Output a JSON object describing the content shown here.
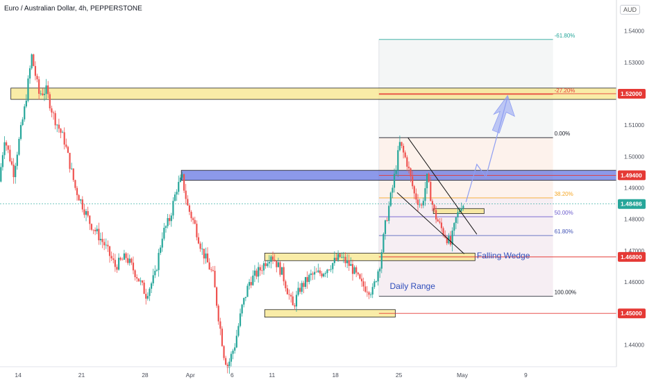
{
  "header": {
    "title": "Euro / Australian Dollar, 4h, PEPPERSTONE",
    "currency_button": "AUD"
  },
  "colors": {
    "up": "#26a69a",
    "down": "#ef5350",
    "zone_yellow": "#f7e58a",
    "zone_blue": "#5b6ee1",
    "fib_red": "#e53935",
    "fib_orange": "#f5a623",
    "fib_purple": "#6a5acd",
    "fib_blue": "#3f51b5",
    "projection": "#8e9ef2"
  },
  "chart_data": {
    "type": "candlestick",
    "symbol": "Euro / Australian Dollar",
    "timeframe": "4h",
    "broker": "PEPPERSTONE",
    "ylim": [
      1.433,
      1.545
    ],
    "x_range": [
      0,
      340
    ],
    "y_ticks": [
      1.44,
      1.45,
      1.46,
      1.47,
      1.48,
      1.49,
      1.5,
      1.51,
      1.52,
      1.53,
      1.54
    ],
    "y_tick_labels": [
      "1.44000",
      "1.45000",
      "1.46000",
      "1.47000",
      "1.48000",
      "1.49000",
      "1.50000",
      "1.51000",
      "1.52000",
      "1.53000",
      "1.54000"
    ],
    "x_ticks": [
      {
        "label": "14",
        "x": 10
      },
      {
        "label": "21",
        "x": 45
      },
      {
        "label": "28",
        "x": 80
      },
      {
        "label": "Apr",
        "x": 105
      },
      {
        "label": "6",
        "x": 128
      },
      {
        "label": "11",
        "x": 150
      },
      {
        "label": "18",
        "x": 185
      },
      {
        "label": "25",
        "x": 220
      },
      {
        "label": "May",
        "x": 255
      },
      {
        "label": "9",
        "x": 290
      }
    ],
    "path_points": [
      [
        0,
        1.492
      ],
      [
        3,
        1.506
      ],
      [
        8,
        1.495
      ],
      [
        14,
        1.515
      ],
      [
        18,
        1.532
      ],
      [
        22,
        1.52
      ],
      [
        26,
        1.521
      ],
      [
        30,
        1.513
      ],
      [
        36,
        1.505
      ],
      [
        42,
        1.49
      ],
      [
        50,
        1.479
      ],
      [
        58,
        1.472
      ],
      [
        64,
        1.465
      ],
      [
        70,
        1.468
      ],
      [
        76,
        1.462
      ],
      [
        81,
        1.456
      ],
      [
        86,
        1.462
      ],
      [
        90,
        1.475
      ],
      [
        94,
        1.48
      ],
      [
        98,
        1.49
      ],
      [
        101,
        1.493
      ],
      [
        104,
        1.484
      ],
      [
        108,
        1.478
      ],
      [
        112,
        1.47
      ],
      [
        118,
        1.462
      ],
      [
        121,
        1.449
      ],
      [
        124,
        1.437
      ],
      [
        126,
        1.433
      ],
      [
        130,
        1.44
      ],
      [
        134,
        1.452
      ],
      [
        138,
        1.46
      ],
      [
        144,
        1.464
      ],
      [
        150,
        1.469
      ],
      [
        156,
        1.463
      ],
      [
        162,
        1.452
      ],
      [
        166,
        1.458
      ],
      [
        172,
        1.462
      ],
      [
        178,
        1.463
      ],
      [
        184,
        1.466
      ],
      [
        188,
        1.468
      ],
      [
        194,
        1.465
      ],
      [
        200,
        1.459
      ],
      [
        206,
        1.457
      ],
      [
        210,
        1.466
      ],
      [
        213,
        1.478
      ],
      [
        217,
        1.49
      ],
      [
        221,
        1.504
      ],
      [
        225,
        1.498
      ],
      [
        229,
        1.488
      ],
      [
        233,
        1.484
      ],
      [
        236,
        1.493
      ],
      [
        240,
        1.482
      ],
      [
        243,
        1.478
      ],
      [
        246,
        1.475
      ],
      [
        249,
        1.472
      ],
      [
        252,
        1.48
      ],
      [
        255,
        1.4848
      ]
    ],
    "last_price": 1.48486,
    "last_price_label": "1.48486",
    "horizontal_levels": [
      {
        "price": 1.52,
        "label": "1.52000",
        "color": "#e53935"
      },
      {
        "price": 1.494,
        "label": "1.49400",
        "color": "#e53935"
      },
      {
        "price": 1.468,
        "label": "1.46800",
        "color": "#e53935"
      },
      {
        "price": 1.45,
        "label": "1.45000",
        "color": "#e53935"
      }
    ],
    "zones": [
      {
        "kind": "resistance",
        "x0": 6,
        "x1": 340,
        "y0": 1.5182,
        "y1": 1.5218,
        "color": "yellow"
      },
      {
        "kind": "resistance",
        "x0": 100,
        "x1": 340,
        "y0": 1.4924,
        "y1": 1.4956,
        "color": "blue"
      },
      {
        "kind": "support",
        "x0": 146,
        "x1": 262,
        "y0": 1.4668,
        "y1": 1.4692,
        "color": "yellow"
      },
      {
        "kind": "support",
        "x0": 146,
        "x1": 218,
        "y0": 1.4488,
        "y1": 1.4512,
        "color": "yellow"
      },
      {
        "kind": "consolidation",
        "x0": 239,
        "x1": 267,
        "y0": 1.4818,
        "y1": 1.4834,
        "color": "yellow"
      }
    ],
    "fibonacci": {
      "x0": 209,
      "x1": 305,
      "levels": [
        {
          "ratio": "-61.80%",
          "price": 1.5373,
          "color": "#26a69a"
        },
        {
          "ratio": "-27.20%",
          "price": 1.5198,
          "color": "#e53935"
        },
        {
          "ratio": "0.00%",
          "price": 1.506,
          "color": "#131722"
        },
        {
          "ratio": "38.20%",
          "price": 1.4868,
          "color": "#f5a623"
        },
        {
          "ratio": "50.00%",
          "price": 1.4808,
          "color": "#6a5acd"
        },
        {
          "ratio": "61.80%",
          "price": 1.4748,
          "color": "#3f51b5"
        },
        {
          "ratio": "100.00%",
          "price": 1.4555,
          "color": "#131722"
        }
      ]
    },
    "wedge_lines": [
      {
        "from": [
          225,
          1.506
        ],
        "to": [
          263,
          1.4752
        ]
      },
      {
        "from": [
          219,
          1.4885
        ],
        "to": [
          256,
          1.469
        ]
      }
    ],
    "projection": [
      [
        257,
        1.4855
      ],
      [
        263,
        1.4975
      ],
      [
        268,
        1.4935
      ],
      [
        280,
        1.519
      ]
    ],
    "annotations": [
      {
        "text": "Falling Wedge",
        "x": 263,
        "y": 1.4675
      },
      {
        "text": "Daily Range",
        "x": 215,
        "y": 1.4578
      }
    ]
  }
}
